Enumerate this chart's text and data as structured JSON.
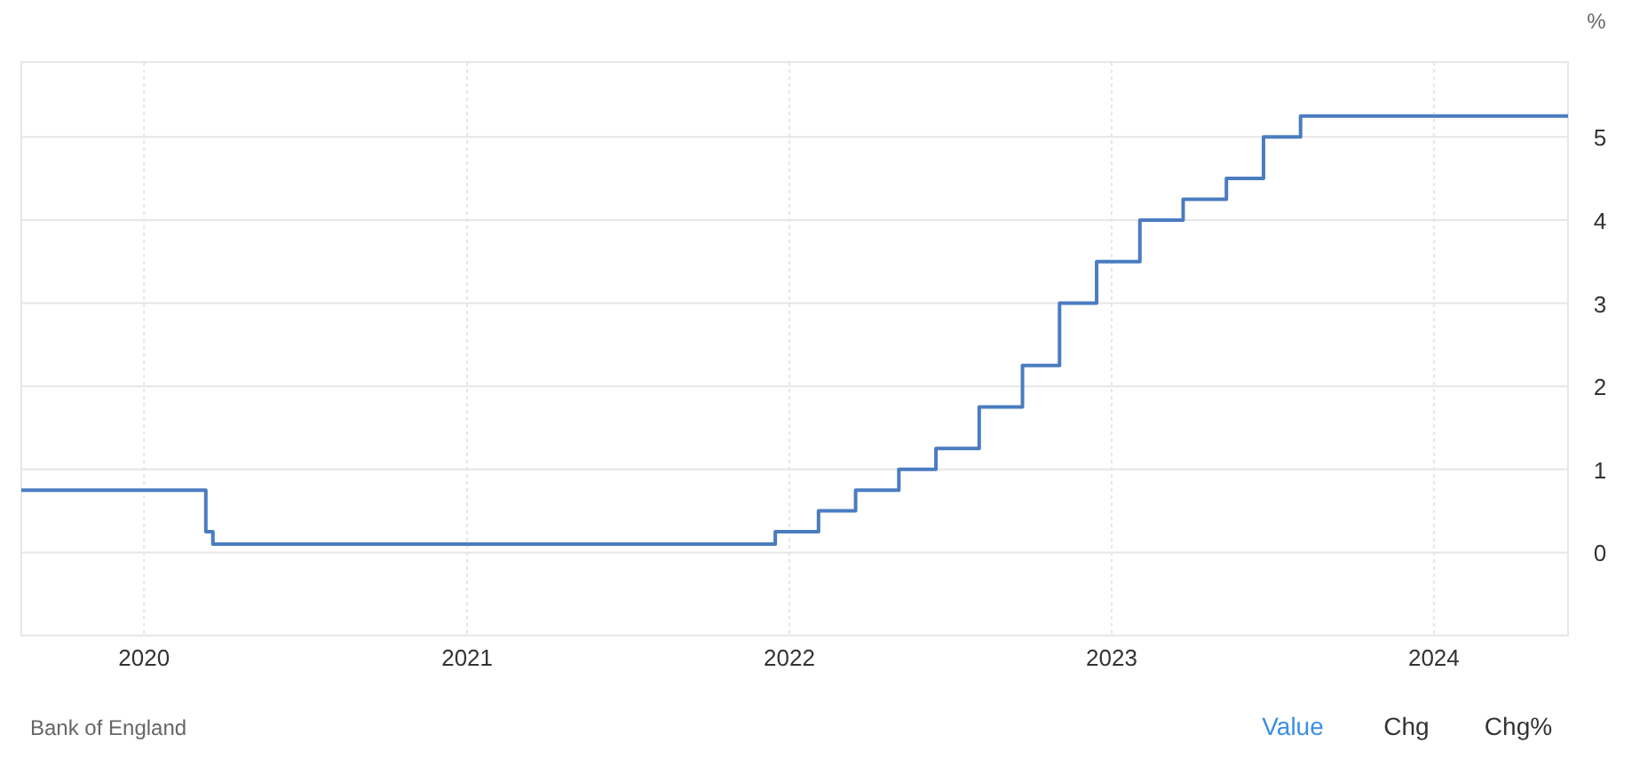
{
  "chart_data": {
    "type": "step",
    "ylabel": "%",
    "xlim": [
      "2019-08-15",
      "2024-06-01"
    ],
    "ylim": [
      -1,
      5.9
    ],
    "xticks": [
      {
        "value": "2020-01-01",
        "label": "2020"
      },
      {
        "value": "2021-01-01",
        "label": "2021"
      },
      {
        "value": "2022-01-01",
        "label": "2022"
      },
      {
        "value": "2023-01-01",
        "label": "2023"
      },
      {
        "value": "2024-01-01",
        "label": "2024"
      }
    ],
    "yticks": [
      0,
      1,
      2,
      3,
      4,
      5
    ],
    "grid": true,
    "line_style": "solid",
    "x": [
      "2019-08-15",
      "2020-03-11",
      "2020-03-19",
      "2021-12-16",
      "2022-02-03",
      "2022-03-17",
      "2022-05-05",
      "2022-06-16",
      "2022-08-04",
      "2022-09-22",
      "2022-11-03",
      "2022-12-15",
      "2023-02-02",
      "2023-03-23",
      "2023-05-11",
      "2023-06-22",
      "2023-08-03",
      "2024-06-01"
    ],
    "series": [
      {
        "color": "#4a7cc0",
        "values": [
          0.75,
          0.25,
          0.1,
          0.25,
          0.5,
          0.75,
          1,
          1.25,
          1.75,
          2.25,
          3,
          3.5,
          4,
          4.25,
          4.5,
          5,
          5.25,
          5.25
        ]
      }
    ],
    "annotations": [
      "Bank of England",
      "Value",
      "Chg",
      "Chg%"
    ]
  }
}
